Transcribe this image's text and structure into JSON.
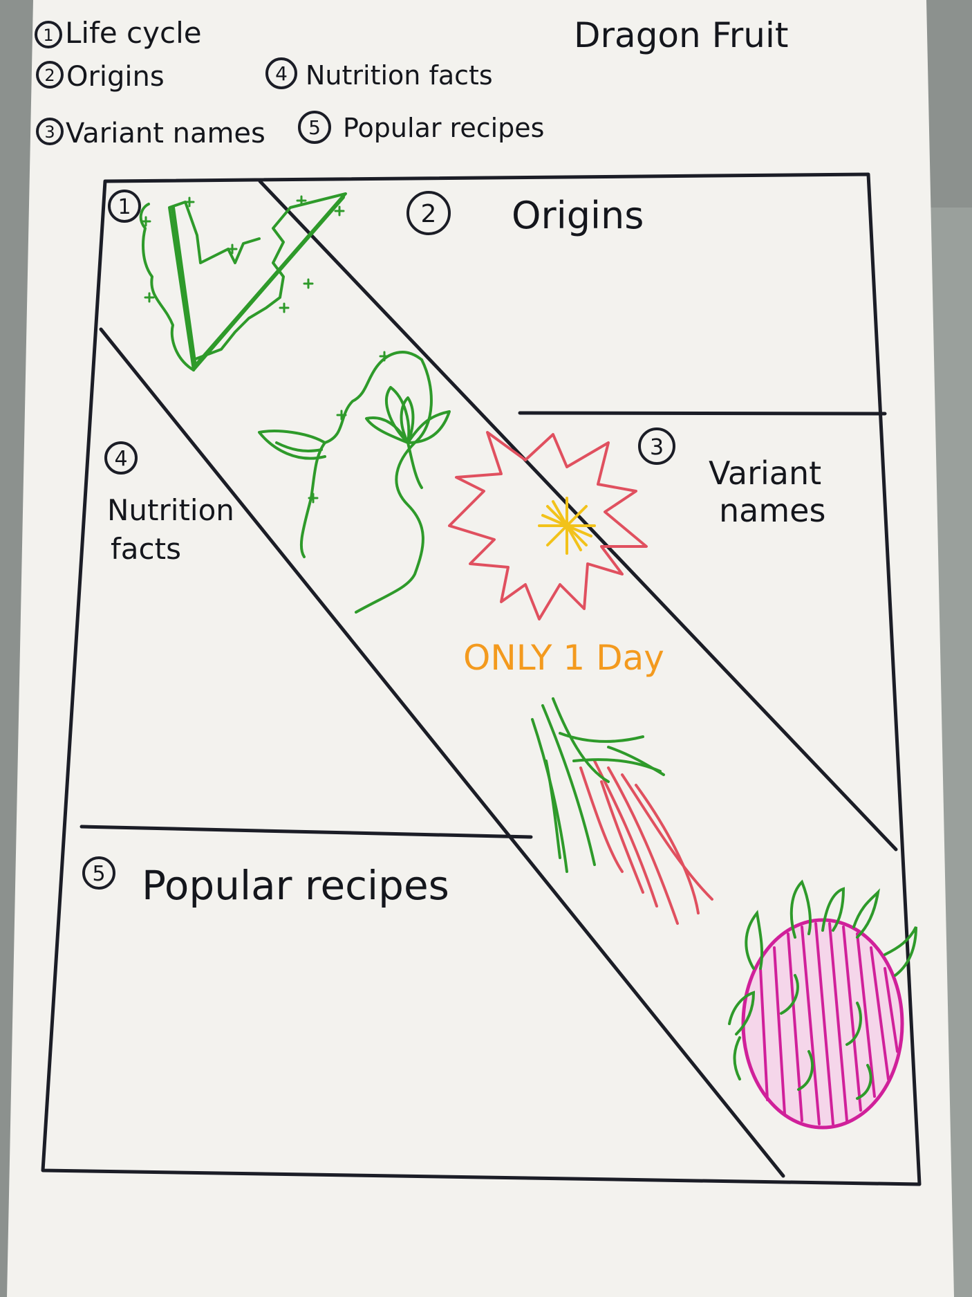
{
  "legend": {
    "items": [
      {
        "num": "1",
        "label": "Life cycle"
      },
      {
        "num": "2",
        "label": "Origins"
      },
      {
        "num": "3",
        "label": "Variant names"
      },
      {
        "num": "4",
        "label": "Nutrition facts"
      },
      {
        "num": "5",
        "label": "Popular recipes"
      }
    ]
  },
  "title": "Dragon Fruit",
  "panels": {
    "life_cycle": {
      "num": "1"
    },
    "origins": {
      "num": "2",
      "label": "Origins"
    },
    "variant_names": {
      "num": "3",
      "line1": "Variant",
      "line2": "names"
    },
    "nutrition_facts": {
      "num": "4",
      "line1": "Nutrition",
      "line2": "facts"
    },
    "popular_recipes": {
      "num": "5",
      "label": "Popular recipes"
    }
  },
  "annotation": "ONLY 1 Day",
  "colors": {
    "ink": "#1b1d26",
    "plant_green": "#2e9a2a",
    "flower_red": "#e0505f",
    "flower_center": "#f2c21a",
    "annotation_orange": "#f39a1e",
    "fruit_magenta": "#d0209a",
    "paper": "#f3f2ee"
  }
}
